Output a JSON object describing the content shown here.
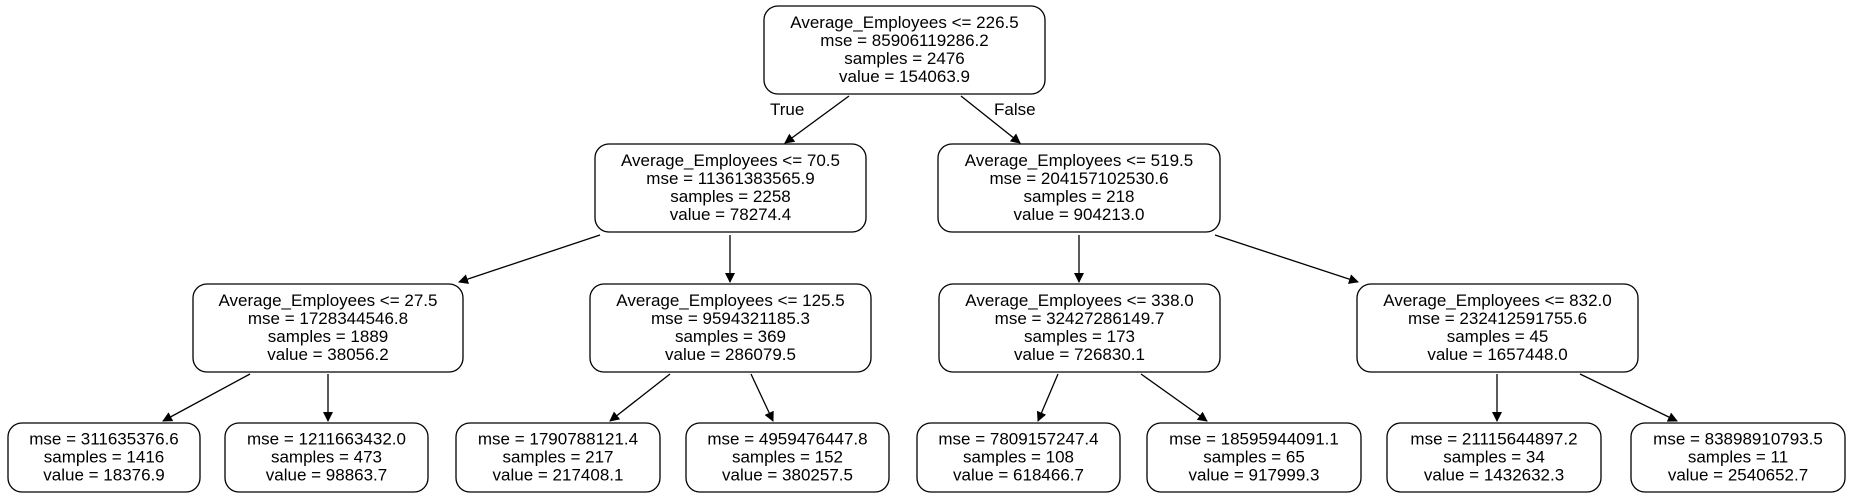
{
  "tree": {
    "nodes": [
      {
        "id": "root",
        "lines": [
          "Average_Employees <= 226.5",
          "mse = 85906119286.2",
          "samples = 2476",
          "value = 154063.9"
        ]
      },
      {
        "id": "l",
        "lines": [
          "Average_Employees <= 70.5",
          "mse = 11361383565.9",
          "samples = 2258",
          "value = 78274.4"
        ]
      },
      {
        "id": "r",
        "lines": [
          "Average_Employees <= 519.5",
          "mse = 204157102530.6",
          "samples = 218",
          "value = 904213.0"
        ]
      },
      {
        "id": "ll",
        "lines": [
          "Average_Employees <= 27.5",
          "mse = 1728344546.8",
          "samples = 1889",
          "value = 38056.2"
        ]
      },
      {
        "id": "lr",
        "lines": [
          "Average_Employees <= 125.5",
          "mse = 9594321185.3",
          "samples = 369",
          "value = 286079.5"
        ]
      },
      {
        "id": "rl",
        "lines": [
          "Average_Employees <= 338.0",
          "mse = 32427286149.7",
          "samples = 173",
          "value = 726830.1"
        ]
      },
      {
        "id": "rr",
        "lines": [
          "Average_Employees <= 832.0",
          "mse = 232412591755.6",
          "samples = 45",
          "value = 1657448.0"
        ]
      },
      {
        "id": "lll",
        "lines": [
          "mse = 311635376.6",
          "samples = 1416",
          "value = 18376.9"
        ]
      },
      {
        "id": "llr",
        "lines": [
          "mse = 1211663432.0",
          "samples = 473",
          "value = 98863.7"
        ]
      },
      {
        "id": "lrl",
        "lines": [
          "mse = 1790788121.4",
          "samples = 217",
          "value = 217408.1"
        ]
      },
      {
        "id": "lrr",
        "lines": [
          "mse = 4959476447.8",
          "samples = 152",
          "value = 380257.5"
        ]
      },
      {
        "id": "rll",
        "lines": [
          "mse = 7809157247.4",
          "samples = 108",
          "value = 618466.7"
        ]
      },
      {
        "id": "rlr",
        "lines": [
          "mse = 18595944091.1",
          "samples = 65",
          "value = 917999.3"
        ]
      },
      {
        "id": "rrl",
        "lines": [
          "mse = 21115644897.2",
          "samples = 34",
          "value = 1432632.3"
        ]
      },
      {
        "id": "rrr",
        "lines": [
          "mse = 83898910793.5",
          "samples = 11",
          "value = 2540652.7"
        ]
      }
    ],
    "edges": [
      {
        "from": "root",
        "to": "l",
        "label": "True"
      },
      {
        "from": "root",
        "to": "r",
        "label": "False"
      },
      {
        "from": "l",
        "to": "ll",
        "label": ""
      },
      {
        "from": "l",
        "to": "lr",
        "label": ""
      },
      {
        "from": "r",
        "to": "rl",
        "label": ""
      },
      {
        "from": "r",
        "to": "rr",
        "label": ""
      },
      {
        "from": "ll",
        "to": "lll",
        "label": ""
      },
      {
        "from": "ll",
        "to": "llr",
        "label": ""
      },
      {
        "from": "lr",
        "to": "lrl",
        "label": ""
      },
      {
        "from": "lr",
        "to": "lrr",
        "label": ""
      },
      {
        "from": "rl",
        "to": "rll",
        "label": ""
      },
      {
        "from": "rl",
        "to": "rlr",
        "label": ""
      },
      {
        "from": "rr",
        "to": "rrl",
        "label": ""
      },
      {
        "from": "rr",
        "to": "rrr",
        "label": ""
      }
    ]
  }
}
